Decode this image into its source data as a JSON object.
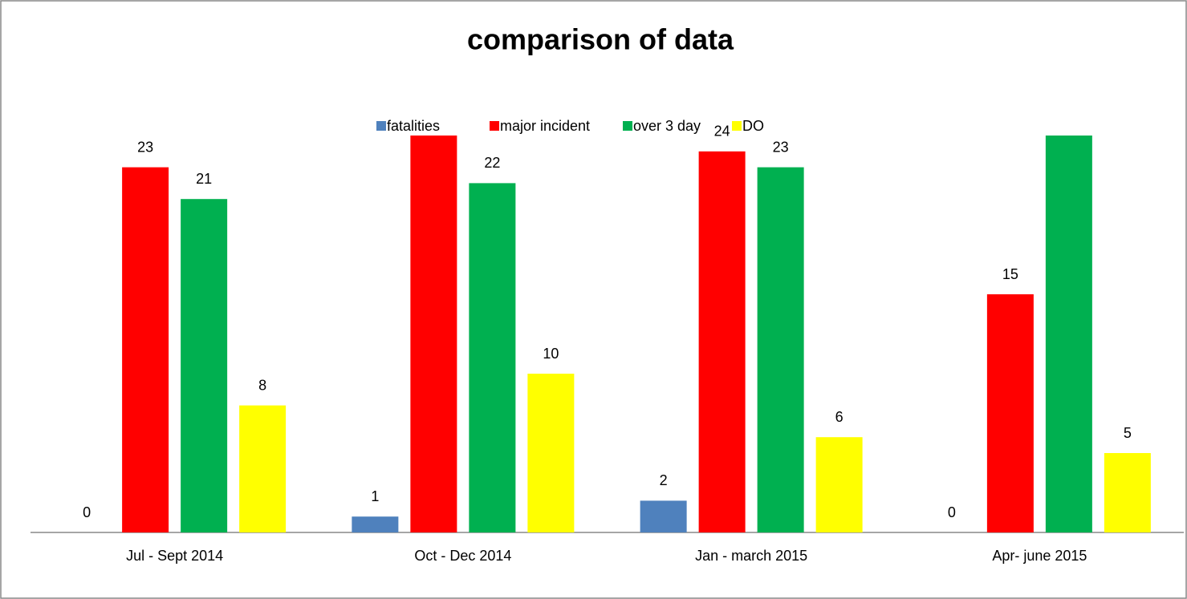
{
  "chart_data": {
    "type": "bar",
    "title": "comparison of data",
    "categories": [
      "Jul - Sept 2014",
      "Oct - Dec 2014",
      "Jan - march 2015",
      "Apr- june 2015"
    ],
    "series": [
      {
        "name": "fatalities",
        "color": "#4f81bd",
        "values": [
          0,
          1,
          2,
          0
        ]
      },
      {
        "name": "major incident",
        "color": "#ff0000",
        "values": [
          23,
          25,
          24,
          15
        ]
      },
      {
        "name": "over 3 day",
        "color": "#00b050",
        "values": [
          21,
          22,
          23,
          25
        ]
      },
      {
        "name": "DO",
        "color": "#ffff00",
        "values": [
          8,
          10,
          6,
          5
        ]
      }
    ],
    "ylim": [
      0,
      25
    ],
    "legend": "top"
  }
}
